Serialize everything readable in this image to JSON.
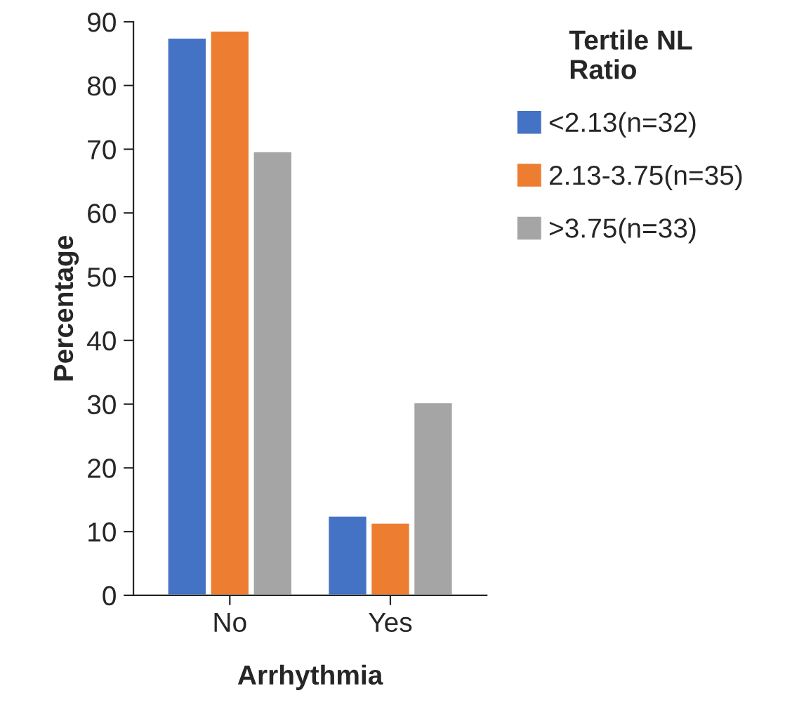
{
  "chart_data": {
    "type": "bar",
    "xlabel": "Arrhythmia",
    "ylabel": "Percentage",
    "legend_title": "Tertile NL\nRatio",
    "categories": [
      "No",
      "Yes"
    ],
    "series": [
      {
        "name": "<2.13(n=32)",
        "color": "#4472c4",
        "values": [
          87.5,
          12.5
        ]
      },
      {
        "name": "2.13-3.75(n=35)",
        "color": "#ed7d31",
        "values": [
          88.6,
          11.4
        ]
      },
      {
        "name": ">3.75(n=33)",
        "color": "#a5a5a5",
        "values": [
          69.7,
          30.3
        ]
      }
    ],
    "ylim": [
      0,
      90
    ],
    "yticks": [
      0,
      10,
      20,
      30,
      40,
      50,
      60,
      70,
      80,
      90
    ],
    "grid": false,
    "legend": "right"
  }
}
